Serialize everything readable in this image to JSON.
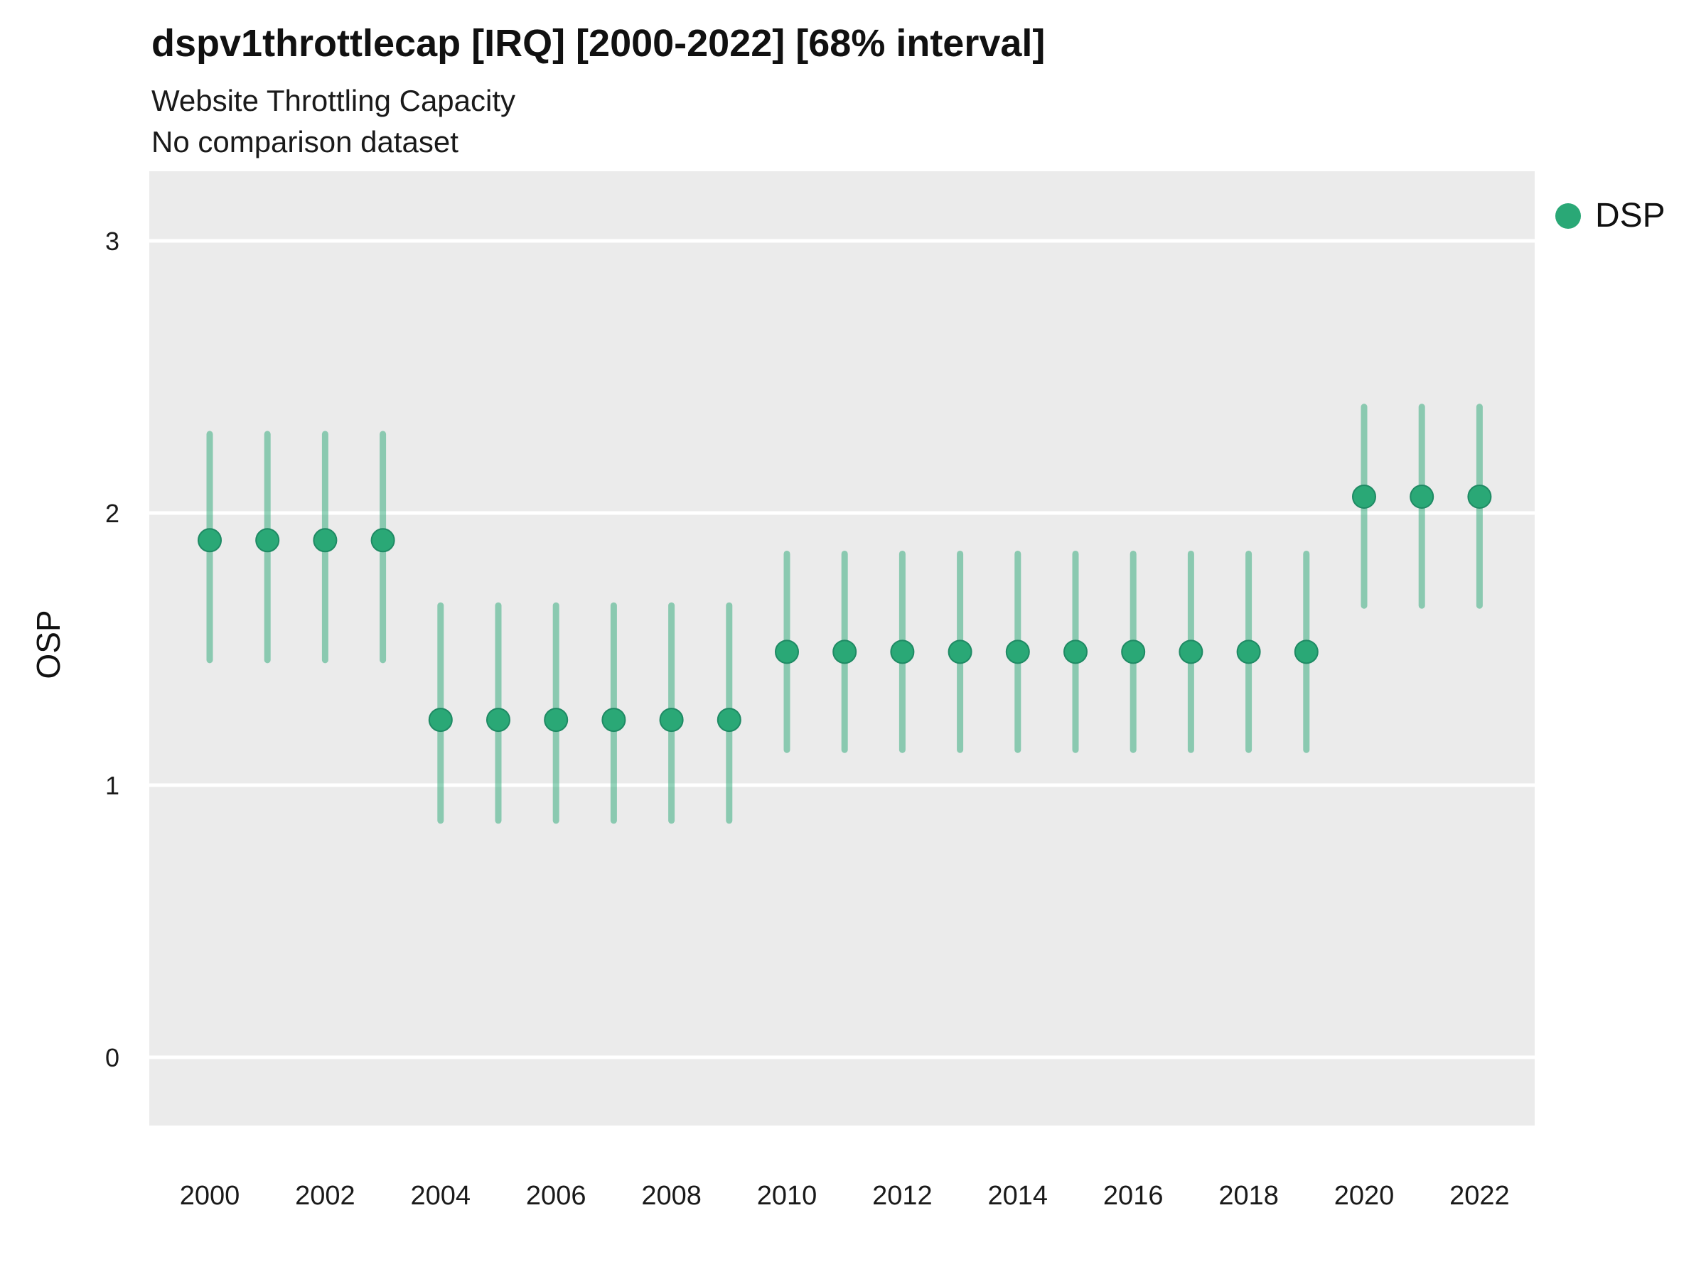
{
  "header": {
    "title": "dspv1throttlecap [IRQ] [2000-2022] [68% interval]",
    "subtitle": "Website Throttling Capacity",
    "note": "No comparison dataset"
  },
  "legend": {
    "label": "DSP",
    "color": "#2aa876"
  },
  "axes": {
    "y_label": "OSP",
    "y_ticks": [
      0,
      1,
      2,
      3
    ],
    "x_ticks": [
      2000,
      2002,
      2004,
      2006,
      2008,
      2010,
      2012,
      2014,
      2016,
      2018,
      2020,
      2022
    ]
  },
  "colors": {
    "panel_background": "#ebebeb",
    "gridline": "#ffffff",
    "point": "#2aa876",
    "interval": "#2aa876"
  },
  "chart_data": {
    "type": "scatter",
    "title": "dspv1throttlecap [IRQ] [2000-2022] [68% interval]",
    "subtitle": "Website Throttling Capacity",
    "note": "No comparison dataset",
    "interval": "68%",
    "xlabel": "",
    "ylabel": "OSP",
    "ylim": [
      -0.25,
      3.26
    ],
    "grid": true,
    "legend_position": "right",
    "x": [
      2000,
      2001,
      2002,
      2003,
      2004,
      2005,
      2006,
      2007,
      2008,
      2009,
      2010,
      2011,
      2012,
      2013,
      2014,
      2015,
      2016,
      2017,
      2018,
      2019,
      2020,
      2021,
      2022
    ],
    "series": [
      {
        "name": "DSP",
        "values": [
          1.9,
          1.9,
          1.9,
          1.9,
          1.24,
          1.24,
          1.24,
          1.24,
          1.24,
          1.24,
          1.49,
          1.49,
          1.49,
          1.49,
          1.49,
          1.49,
          1.49,
          1.49,
          1.49,
          1.49,
          2.06,
          2.06,
          2.06
        ],
        "lower": [
          1.46,
          1.46,
          1.46,
          1.46,
          0.87,
          0.87,
          0.87,
          0.87,
          0.87,
          0.87,
          1.13,
          1.13,
          1.13,
          1.13,
          1.13,
          1.13,
          1.13,
          1.13,
          1.13,
          1.13,
          1.66,
          1.66,
          1.66
        ],
        "upper": [
          2.29,
          2.29,
          2.29,
          2.29,
          1.66,
          1.66,
          1.66,
          1.66,
          1.66,
          1.66,
          1.85,
          1.85,
          1.85,
          1.85,
          1.85,
          1.85,
          1.85,
          1.85,
          1.85,
          1.85,
          2.39,
          2.39,
          2.39
        ]
      }
    ]
  }
}
